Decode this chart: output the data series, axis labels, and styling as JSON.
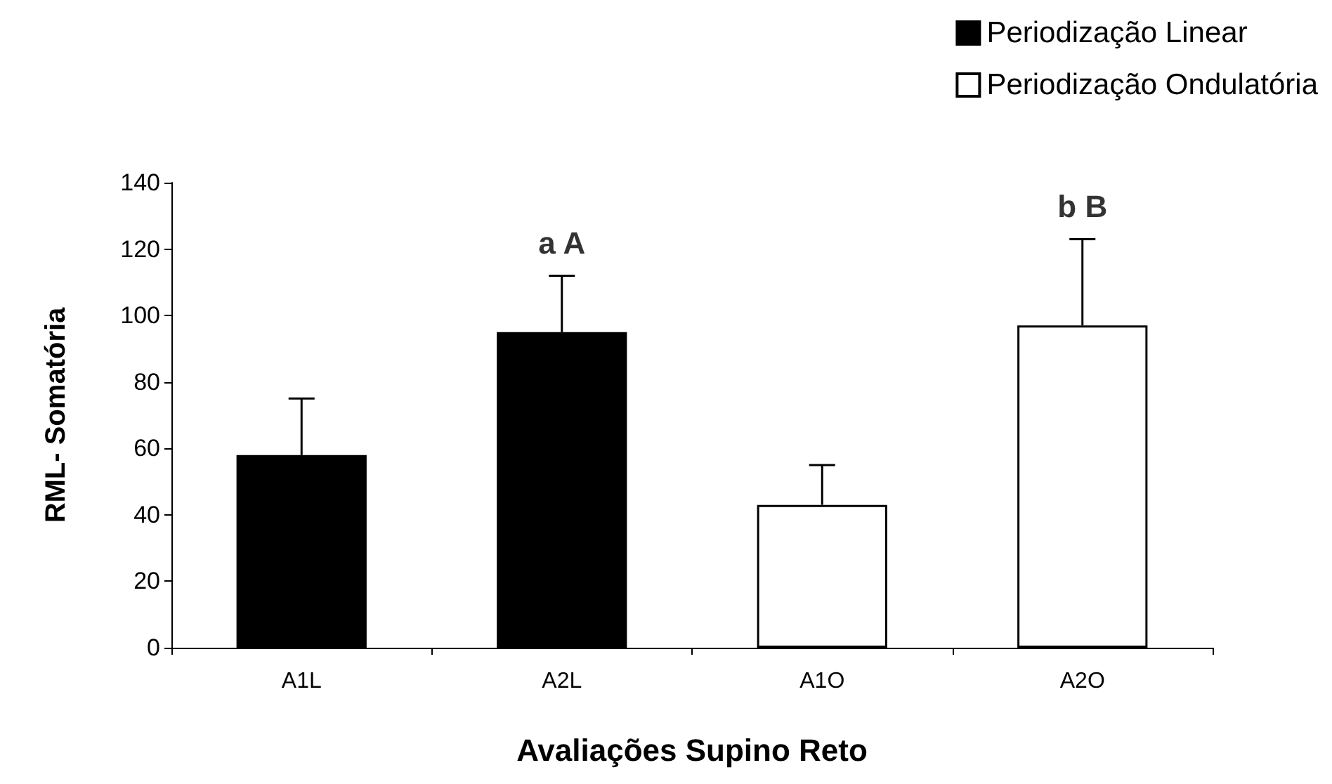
{
  "chart_data": {
    "type": "bar",
    "xlabel": "Avaliações Supino Reto",
    "ylabel": "RML- Somatória",
    "categories": [
      "A1L",
      "A2L",
      "A1O",
      "A2O"
    ],
    "series": [
      {
        "name": "Periodização Linear",
        "color": "#000000",
        "values": [
          58,
          95,
          null,
          null
        ],
        "errors": [
          [
            58,
            75
          ],
          [
            95,
            112
          ],
          null,
          null
        ]
      },
      {
        "name": "Periodização Ondulatória",
        "color": "#ffffff",
        "values": [
          null,
          null,
          43,
          97
        ],
        "errors": [
          null,
          null,
          [
            43,
            55
          ],
          [
            97,
            123
          ]
        ]
      }
    ],
    "ylim": [
      0,
      140
    ],
    "yticks": [
      0,
      20,
      40,
      60,
      80,
      100,
      120,
      140
    ],
    "grid": false,
    "legend": "top right",
    "annotations": [
      "a A",
      "b B"
    ]
  }
}
